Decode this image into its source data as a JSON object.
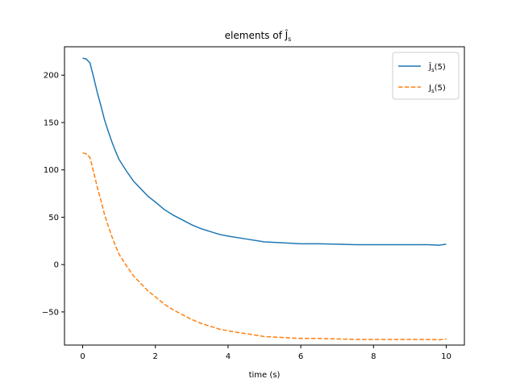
{
  "chart_data": {
    "type": "line",
    "title": "elements of Ĵ",
    "title_sub": "s",
    "xlabel": "time (s)",
    "ylabel": "",
    "xlim": [
      -0.5,
      10.5
    ],
    "ylim": [
      -85,
      230
    ],
    "x_ticks": [
      0,
      2,
      4,
      6,
      8,
      10
    ],
    "x_tick_labels": [
      "0",
      "2",
      "4",
      "6",
      "8",
      "10"
    ],
    "y_ticks": [
      -50,
      0,
      50,
      100,
      150,
      200
    ],
    "y_tick_labels": [
      "−50",
      "0",
      "50",
      "100",
      "150",
      "200"
    ],
    "grid": false,
    "legend_position": "top-right",
    "series": [
      {
        "legend_main": "Ĵ",
        "legend_sub": "s",
        "legend_suffix": "(5)",
        "color": "#1f77b4",
        "style": "solid",
        "x": [
          0,
          0.1,
          0.2,
          0.3,
          0.4,
          0.5,
          0.6,
          0.7,
          0.8,
          0.9,
          1.0,
          1.2,
          1.4,
          1.6,
          1.8,
          2.0,
          2.25,
          2.5,
          2.75,
          3.0,
          3.25,
          3.5,
          3.75,
          4.0,
          4.5,
          5.0,
          5.5,
          6.0,
          6.5,
          7.0,
          7.5,
          8.0,
          8.5,
          9.0,
          9.5,
          9.8,
          10.0
        ],
        "y": [
          218,
          217,
          213,
          198,
          182,
          168,
          153,
          141,
          130,
          120,
          111,
          99,
          88,
          80,
          72,
          66,
          58,
          52,
          47,
          42,
          38,
          35,
          32,
          30,
          27,
          24,
          23,
          22,
          22,
          21.5,
          21,
          21,
          21,
          21,
          21,
          20.5,
          21.5
        ]
      },
      {
        "legend_main": "J",
        "legend_sub": "s",
        "legend_suffix": "(5)",
        "color": "#ff7f0e",
        "style": "dashed",
        "x": [
          0,
          0.1,
          0.2,
          0.3,
          0.4,
          0.5,
          0.6,
          0.7,
          0.8,
          0.9,
          1.0,
          1.2,
          1.4,
          1.6,
          1.8,
          2.0,
          2.25,
          2.5,
          2.75,
          3.0,
          3.25,
          3.5,
          3.75,
          4.0,
          4.5,
          5.0,
          5.5,
          6.0,
          6.5,
          7.0,
          7.5,
          8.0,
          8.5,
          9.0,
          9.5,
          9.8,
          10.0
        ],
        "y": [
          118,
          117,
          113,
          98,
          82,
          68,
          53,
          41,
          30,
          20,
          11,
          -1,
          -12,
          -20,
          -28,
          -34,
          -42,
          -48,
          -53,
          -58,
          -62,
          -65,
          -68,
          -70,
          -73,
          -76,
          -77,
          -78,
          -78,
          -78.5,
          -79,
          -79,
          -79,
          -79,
          -79,
          -79.5,
          -78.5
        ]
      }
    ]
  }
}
